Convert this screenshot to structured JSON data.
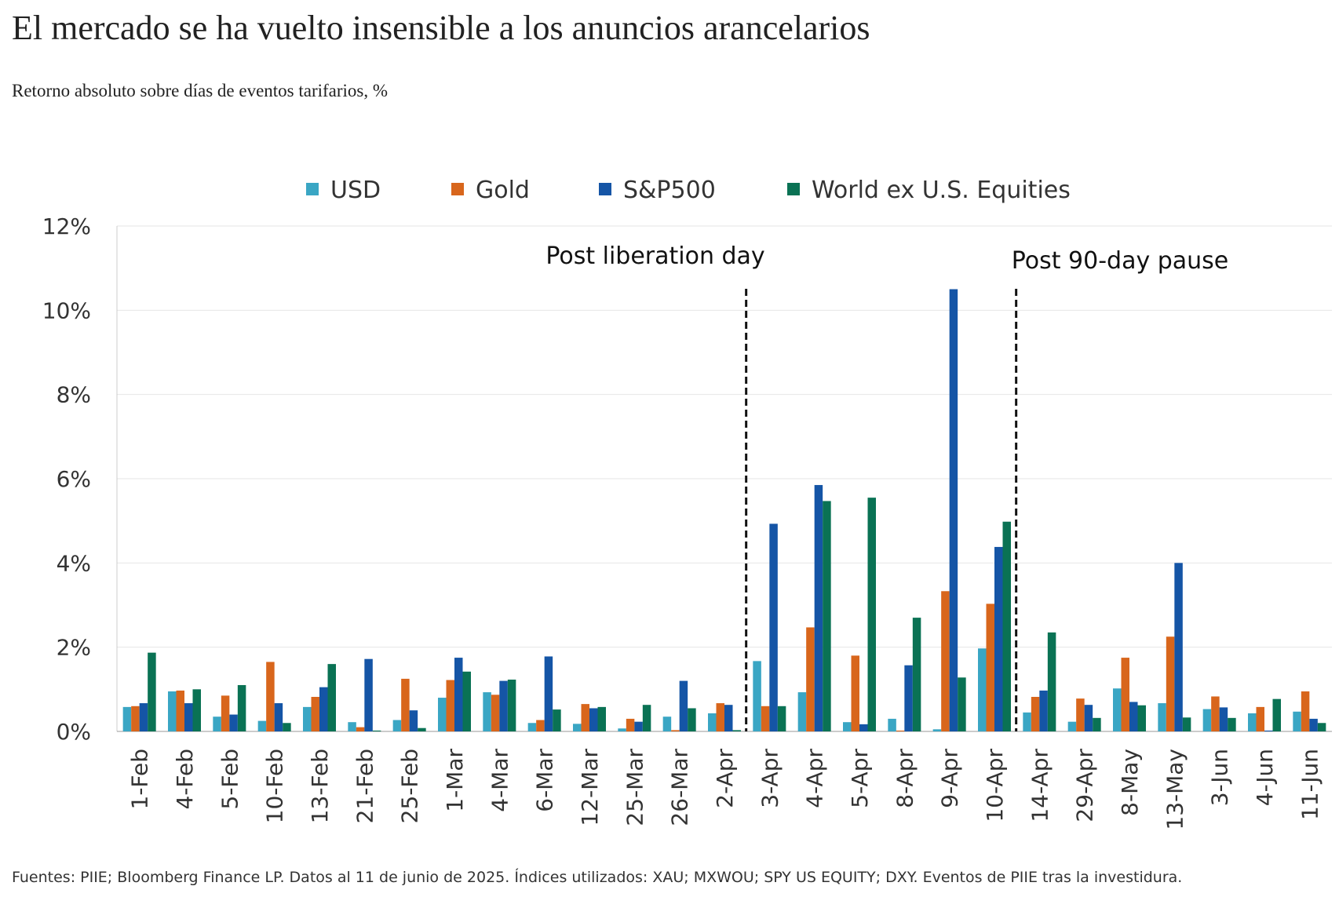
{
  "chart_data": {
    "type": "bar",
    "title": "El mercado se ha vuelto insensible a los anuncios arancelarios",
    "subtitle": "Retorno absoluto sobre días de eventos tarifarios, %",
    "footnote": "Fuentes: PIIE; Bloomberg Finance LP. Datos al 11 de junio de 2025. Índices utilizados: XAU; MXWOU; SPY US EQUITY; DXY. Eventos de PIIE tras la investidura.",
    "annotations": [
      "Post liberation day",
      "Post 90-day pause"
    ],
    "categories": [
      "1-Feb",
      "4-Feb",
      "5-Feb",
      "10-Feb",
      "13-Feb",
      "21-Feb",
      "25-Feb",
      "1-Mar",
      "4-Mar",
      "6-Mar",
      "12-Mar",
      "25-Mar",
      "26-Mar",
      "2-Apr",
      "3-Apr",
      "4-Apr",
      "5-Apr",
      "8-Apr",
      "9-Apr",
      "10-Apr",
      "14-Apr",
      "29-Apr",
      "8-May",
      "13-May",
      "3-Jun",
      "4-Jun",
      "11-Jun"
    ],
    "series": [
      {
        "name": "USD",
        "color": "#3aa6c4",
        "values": [
          0.58,
          0.95,
          0.35,
          0.25,
          0.58,
          0.22,
          0.27,
          0.8,
          0.93,
          0.2,
          0.18,
          0.07,
          0.35,
          0.43,
          1.67,
          0.93,
          0.22,
          0.3,
          0.05,
          1.97,
          0.45,
          0.23,
          1.02,
          0.67,
          0.53,
          0.43,
          0.47
        ]
      },
      {
        "name": "Gold",
        "color": "#d8661c",
        "values": [
          0.6,
          0.97,
          0.85,
          1.65,
          0.82,
          0.1,
          1.25,
          1.22,
          0.87,
          0.27,
          0.65,
          0.3,
          0.03,
          0.67,
          0.6,
          2.47,
          1.8,
          0.02,
          3.33,
          3.03,
          0.82,
          0.78,
          1.75,
          2.25,
          0.83,
          0.58,
          0.95
        ]
      },
      {
        "name": "S&P500",
        "color": "#1555a6",
        "values": [
          0.67,
          0.67,
          0.4,
          0.67,
          1.05,
          1.72,
          0.5,
          1.75,
          1.2,
          1.78,
          0.55,
          0.23,
          1.2,
          0.63,
          4.93,
          5.85,
          0.17,
          1.57,
          10.5,
          4.38,
          0.97,
          0.63,
          0.7,
          4.0,
          0.57,
          0.02,
          0.3
        ]
      },
      {
        "name": "World ex U.S. Equities",
        "color": "#0a7254",
        "values": [
          1.87,
          1.0,
          1.1,
          0.2,
          1.6,
          0.02,
          0.08,
          1.42,
          1.23,
          0.52,
          0.58,
          0.63,
          0.55,
          0.03,
          0.6,
          5.47,
          5.55,
          2.7,
          1.28,
          4.98,
          2.35,
          0.32,
          0.62,
          0.33,
          0.32,
          0.77,
          0.2
        ]
      }
    ],
    "ylim": [
      0,
      12
    ],
    "yticks": [
      {
        "value": 0,
        "label": "0%"
      },
      {
        "value": 2,
        "label": "2%"
      },
      {
        "value": 4,
        "label": "4%"
      },
      {
        "value": 6,
        "label": "6%"
      },
      {
        "value": 8,
        "label": "8%"
      },
      {
        "value": 10,
        "label": "10%"
      },
      {
        "value": 12,
        "label": "12%"
      }
    ],
    "grid": true
  }
}
